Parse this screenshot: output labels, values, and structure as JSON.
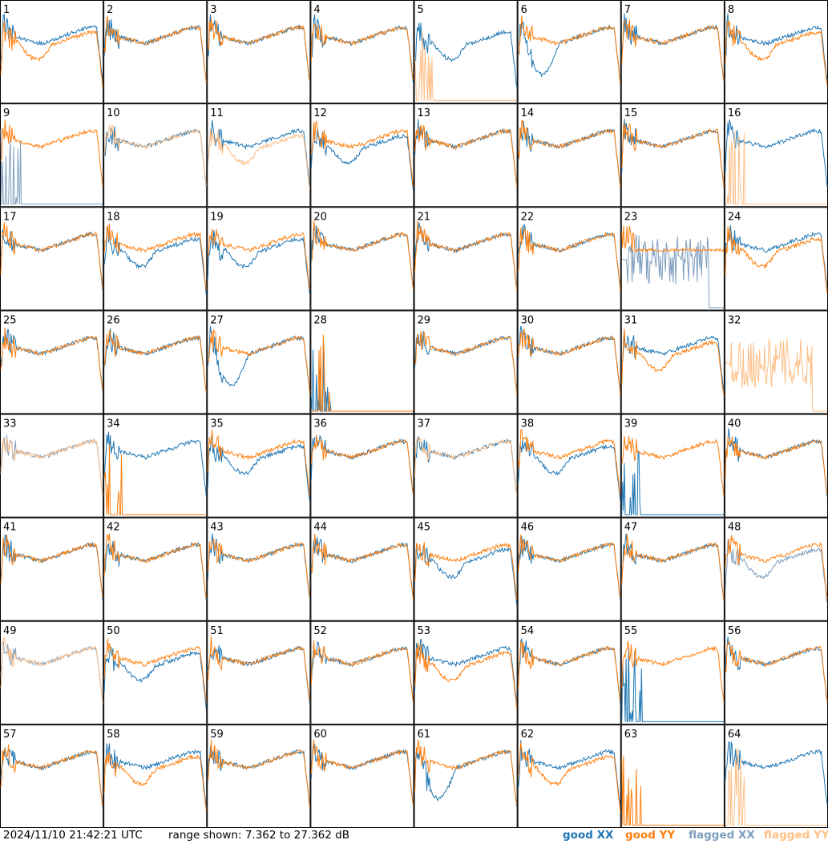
{
  "footer": {
    "timestamp": "2024/11/10 21:42:21 UTC",
    "range_text": "range shown: 7.362 to 27.362 dB",
    "legend": [
      {
        "label": "good XX",
        "color": "#1f77b4"
      },
      {
        "label": "good YY",
        "color": "#ff7f0e"
      },
      {
        "label": "flagged XX",
        "color": "#7f9fbf"
      },
      {
        "label": "flagged YY",
        "color": "#ffbf87"
      }
    ]
  },
  "chart_data": {
    "type": "line",
    "layout": "8x8 grid of small-multiple spectra",
    "y_range_db": [
      7.362,
      27.362
    ],
    "panel_labels": [
      "1",
      "2",
      "3",
      "4",
      "5",
      "6",
      "7",
      "8",
      "9",
      "10",
      "11",
      "12",
      "13",
      "14",
      "15",
      "16",
      "17",
      "18",
      "19",
      "20",
      "21",
      "22",
      "23",
      "24",
      "25",
      "26",
      "27",
      "28",
      "29",
      "30",
      "31",
      "32",
      "33",
      "34",
      "35",
      "36",
      "37",
      "38",
      "39",
      "40",
      "41",
      "42",
      "43",
      "44",
      "45",
      "46",
      "47",
      "48",
      "49",
      "50",
      "51",
      "52",
      "53",
      "54",
      "55",
      "56",
      "57",
      "58",
      "59",
      "60",
      "61",
      "62",
      "63",
      "64"
    ],
    "panels": [
      {
        "xx": "normal",
        "yy": "dip"
      },
      {
        "xx": "normal",
        "yy": "normal"
      },
      {
        "xx": "normal",
        "yy": "normal"
      },
      {
        "xx": "normal",
        "yy": "normal"
      },
      {
        "xx": "dip",
        "yy": "spikes_low",
        "yy_flagged": true
      },
      {
        "xx": "deep_dip",
        "yy": "normal"
      },
      {
        "xx": "normal",
        "yy": "normal"
      },
      {
        "xx": "normal",
        "yy": "dip"
      },
      {
        "xx": "spikes_low",
        "xx_flagged": true,
        "yy": "normal"
      },
      {
        "xx": "normal",
        "yy": "normal",
        "yy_flagged": true
      },
      {
        "xx": "normal",
        "yy": "dip",
        "yy_flagged": true
      },
      {
        "xx": "dip",
        "yy": "normal"
      },
      {
        "xx": "normal",
        "yy": "normal"
      },
      {
        "xx": "normal",
        "yy": "normal"
      },
      {
        "xx": "normal",
        "yy": "normal"
      },
      {
        "xx": "normal",
        "yy": "spikes_low",
        "yy_flagged": true
      },
      {
        "xx": "normal",
        "yy": "normal"
      },
      {
        "xx": "dip",
        "yy": "normal"
      },
      {
        "xx": "dip",
        "yy": "normal"
      },
      {
        "xx": "normal",
        "yy": "normal"
      },
      {
        "xx": "normal",
        "yy": "normal"
      },
      {
        "xx": "normal",
        "yy": "normal"
      },
      {
        "xx": "noisy",
        "xx_flagged": true,
        "yy": "flat"
      },
      {
        "xx": "normal",
        "yy": "dip"
      },
      {
        "xx": "normal",
        "yy": "normal"
      },
      {
        "xx": "normal",
        "yy": "normal"
      },
      {
        "xx": "deep_dip",
        "yy": "normal"
      },
      {
        "xx": "spikes_low",
        "yy": "spikes_low"
      },
      {
        "xx": "normal",
        "yy": "normal"
      },
      {
        "xx": "normal",
        "yy": "normal"
      },
      {
        "xx": "normal",
        "yy": "dip"
      },
      {
        "xx": "none",
        "yy": "noisy",
        "yy_flagged": true
      },
      {
        "xx": "normal",
        "xx_flagged": true,
        "yy": "normal",
        "yy_flagged": true
      },
      {
        "xx": "normal",
        "yy": "spikes_low"
      },
      {
        "xx": "dip",
        "yy": "normal"
      },
      {
        "xx": "normal",
        "yy": "normal"
      },
      {
        "xx": "normal",
        "yy": "normal",
        "yy_flagged": true
      },
      {
        "xx": "dip",
        "yy": "normal"
      },
      {
        "xx": "spikes_low",
        "yy": "normal"
      },
      {
        "xx": "normal",
        "yy": "normal"
      },
      {
        "xx": "normal",
        "yy": "normal"
      },
      {
        "xx": "normal",
        "yy": "normal"
      },
      {
        "xx": "normal",
        "yy": "normal"
      },
      {
        "xx": "normal",
        "yy": "normal"
      },
      {
        "xx": "dip",
        "yy": "normal"
      },
      {
        "xx": "normal",
        "yy": "normal"
      },
      {
        "xx": "normal",
        "yy": "normal"
      },
      {
        "xx": "dip",
        "xx_flagged": true,
        "yy": "normal"
      },
      {
        "xx": "normal",
        "xx_flagged": true,
        "yy": "normal",
        "yy_flagged": true
      },
      {
        "xx": "dip",
        "yy": "normal"
      },
      {
        "xx": "normal",
        "yy": "normal"
      },
      {
        "xx": "normal",
        "yy": "normal"
      },
      {
        "xx": "normal",
        "yy": "dip"
      },
      {
        "xx": "normal",
        "yy": "normal"
      },
      {
        "xx": "spikes_low",
        "yy": "normal"
      },
      {
        "xx": "normal",
        "yy": "normal"
      },
      {
        "xx": "normal",
        "yy": "normal"
      },
      {
        "xx": "normal",
        "yy": "dip"
      },
      {
        "xx": "normal",
        "yy": "normal"
      },
      {
        "xx": "normal",
        "yy": "normal"
      },
      {
        "xx": "deep_dip",
        "yy": "normal"
      },
      {
        "xx": "normal",
        "yy": "dip"
      },
      {
        "xx": "none",
        "yy": "spikes_low"
      },
      {
        "xx": "normal",
        "yy": "spikes_low",
        "yy_flagged": true
      }
    ]
  }
}
